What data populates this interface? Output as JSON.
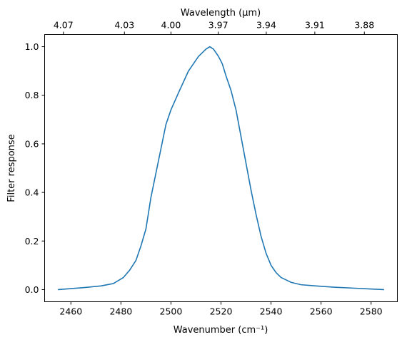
{
  "chart_data": {
    "type": "line",
    "title": "",
    "xlabel": "Wavenumber (cm⁻¹)",
    "ylabel": "Filter response",
    "top_xlabel": "Wavelength (μm)",
    "xlim": [
      2449.5,
      2590.5
    ],
    "ylim": [
      -0.05,
      1.05
    ],
    "grid": false,
    "legend": "none",
    "line_color": "#1f77b4",
    "x_ticks": [
      {
        "value": 2460,
        "label": "2460"
      },
      {
        "value": 2480,
        "label": "2480"
      },
      {
        "value": 2500,
        "label": "2500"
      },
      {
        "value": 2520,
        "label": "2520"
      },
      {
        "value": 2540,
        "label": "2540"
      },
      {
        "value": 2560,
        "label": "2560"
      },
      {
        "value": 2580,
        "label": "2580"
      }
    ],
    "y_ticks": [
      {
        "value": 0.0,
        "label": "0.0"
      },
      {
        "value": 0.2,
        "label": "0.2"
      },
      {
        "value": 0.4,
        "label": "0.4"
      },
      {
        "value": 0.6,
        "label": "0.6"
      },
      {
        "value": 0.8,
        "label": "0.8"
      },
      {
        "value": 1.0,
        "label": "1.0"
      }
    ],
    "top_ticks": [
      {
        "value": 2457.0,
        "label": "4.07"
      },
      {
        "value": 2481.4,
        "label": "4.03"
      },
      {
        "value": 2500.0,
        "label": "4.00"
      },
      {
        "value": 2518.9,
        "label": "3.97"
      },
      {
        "value": 2538.1,
        "label": "3.94"
      },
      {
        "value": 2557.5,
        "label": "3.91"
      },
      {
        "value": 2577.3,
        "label": "3.88"
      }
    ],
    "series": [
      {
        "x": [
          2455,
          2465,
          2472,
          2477,
          2481,
          2483.5,
          2486,
          2488,
          2490,
          2492,
          2494,
          2496,
          2498,
          2500,
          2503,
          2507,
          2511,
          2514,
          2515.5,
          2517,
          2519,
          2520.5,
          2522,
          2524,
          2526,
          2528,
          2530,
          2532,
          2534,
          2536,
          2538,
          2540,
          2542,
          2544,
          2546,
          2548,
          2552,
          2558,
          2565,
          2575,
          2585
        ],
        "y": [
          0.0,
          0.008,
          0.015,
          0.025,
          0.05,
          0.08,
          0.12,
          0.18,
          0.25,
          0.38,
          0.48,
          0.58,
          0.68,
          0.74,
          0.81,
          0.9,
          0.96,
          0.99,
          1.0,
          0.99,
          0.96,
          0.93,
          0.88,
          0.82,
          0.74,
          0.63,
          0.52,
          0.41,
          0.31,
          0.22,
          0.15,
          0.1,
          0.07,
          0.05,
          0.04,
          0.03,
          0.02,
          0.015,
          0.01,
          0.005,
          0.0
        ]
      }
    ]
  }
}
